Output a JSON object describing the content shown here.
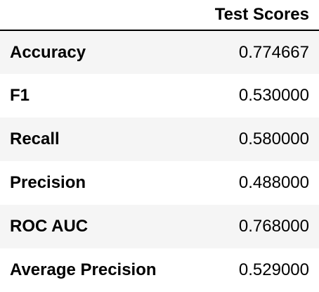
{
  "table": {
    "header": {
      "column": "Test Scores"
    },
    "rows": [
      {
        "label": "Accuracy",
        "value": "0.774667"
      },
      {
        "label": "F1",
        "value": "0.530000"
      },
      {
        "label": "Recall",
        "value": "0.580000"
      },
      {
        "label": "Precision",
        "value": "0.488000"
      },
      {
        "label": "ROC AUC",
        "value": "0.768000"
      },
      {
        "label": "Average Precision",
        "value": "0.529000"
      }
    ],
    "colors": {
      "stripe": "#f5f5f5",
      "background": "#ffffff",
      "rule": "#000000"
    }
  }
}
